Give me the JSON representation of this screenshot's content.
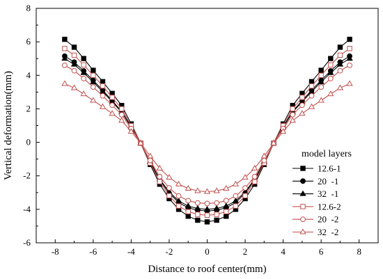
{
  "chart_data": {
    "type": "line",
    "title": "",
    "xlabel": "Distance to roof center(mm)",
    "ylabel": "Vertical deformation(mm)",
    "xlim": [
      -9,
      9
    ],
    "ylim": [
      -6,
      8
    ],
    "xticks": [
      -8,
      -6,
      -4,
      -2,
      0,
      2,
      4,
      6,
      8
    ],
    "yticks": [
      -6,
      -4,
      -2,
      0,
      2,
      4,
      6,
      8
    ],
    "grid": false,
    "legend": {
      "title": "model layers",
      "placement": "right"
    },
    "colors": {
      "black": "#000000",
      "red": "#c0504d"
    },
    "series": [
      {
        "name": "12.6-1",
        "color": "#000000",
        "marker": "square-filled",
        "x": [
          -7.5,
          -6,
          -4.5,
          -3.5,
          -2.5,
          -1.5,
          -0.5,
          0,
          0.5,
          1.5,
          2.5,
          3.5,
          4.5,
          6,
          7.5
        ],
        "y": [
          6.15,
          4.3,
          2.2,
          -0.05,
          -2.5,
          -4.0,
          -4.65,
          -4.75,
          -4.65,
          -4.0,
          -2.5,
          -0.05,
          2.2,
          4.3,
          6.15
        ]
      },
      {
        "name": "20  -1",
        "color": "#000000",
        "marker": "circle-filled",
        "x": [
          -7.5,
          -6,
          -4.5,
          -3.5,
          -2.5,
          -1.5,
          -0.5,
          0,
          0.5,
          1.5,
          2.5,
          3.5,
          4.5,
          6,
          7.5
        ],
        "y": [
          5.15,
          3.7,
          1.85,
          -0.05,
          -2.25,
          -3.6,
          -4.05,
          -4.1,
          -4.05,
          -3.6,
          -2.25,
          -0.05,
          1.85,
          3.7,
          5.15
        ]
      },
      {
        "name": "32  -1",
        "color": "#000000",
        "marker": "triangle-filled",
        "x": [
          -7.5,
          -6,
          -4.5,
          -3.5,
          -2.5,
          -1.5,
          -0.5,
          0,
          0.5,
          1.5,
          2.5,
          3.5,
          4.5,
          6,
          7.5
        ],
        "y": [
          5.0,
          3.6,
          1.8,
          -0.05,
          -2.2,
          -3.5,
          -3.95,
          -4.0,
          -3.95,
          -3.5,
          -2.2,
          -0.05,
          1.8,
          3.6,
          5.0
        ]
      },
      {
        "name": "12.6-2",
        "color": "#c0504d",
        "marker": "square-open",
        "x": [
          -7.5,
          -6,
          -4.5,
          -3.5,
          -2.5,
          -1.5,
          -0.5,
          0,
          0.5,
          1.5,
          2.5,
          3.5,
          4.5,
          6,
          7.5
        ],
        "y": [
          5.6,
          4.0,
          2.0,
          -0.05,
          -2.35,
          -3.8,
          -4.3,
          -4.35,
          -4.3,
          -3.8,
          -2.35,
          -0.05,
          2.0,
          4.0,
          5.6
        ]
      },
      {
        "name": "20  -2",
        "color": "#c0504d",
        "marker": "circle-open",
        "x": [
          -7.5,
          -6,
          -4.5,
          -3.5,
          -2.5,
          -1.5,
          -0.5,
          0,
          0.5,
          1.5,
          2.5,
          3.5,
          4.5,
          6,
          7.5
        ],
        "y": [
          4.6,
          3.3,
          1.65,
          -0.05,
          -2.05,
          -3.2,
          -3.62,
          -3.65,
          -3.62,
          -3.2,
          -2.05,
          -0.05,
          1.65,
          3.3,
          4.6
        ]
      },
      {
        "name": "32  -2",
        "color": "#c0504d",
        "marker": "triangle-open",
        "x": [
          -7.5,
          -6,
          -4.5,
          -3.5,
          -2.5,
          -1.5,
          -0.5,
          0,
          0.5,
          1.5,
          2.5,
          3.5,
          4.5,
          6,
          7.5
        ],
        "y": [
          3.5,
          2.5,
          1.3,
          -0.05,
          -1.55,
          -2.5,
          -2.9,
          -2.95,
          -2.9,
          -2.5,
          -1.55,
          -0.05,
          1.3,
          2.5,
          3.5
        ]
      }
    ]
  }
}
